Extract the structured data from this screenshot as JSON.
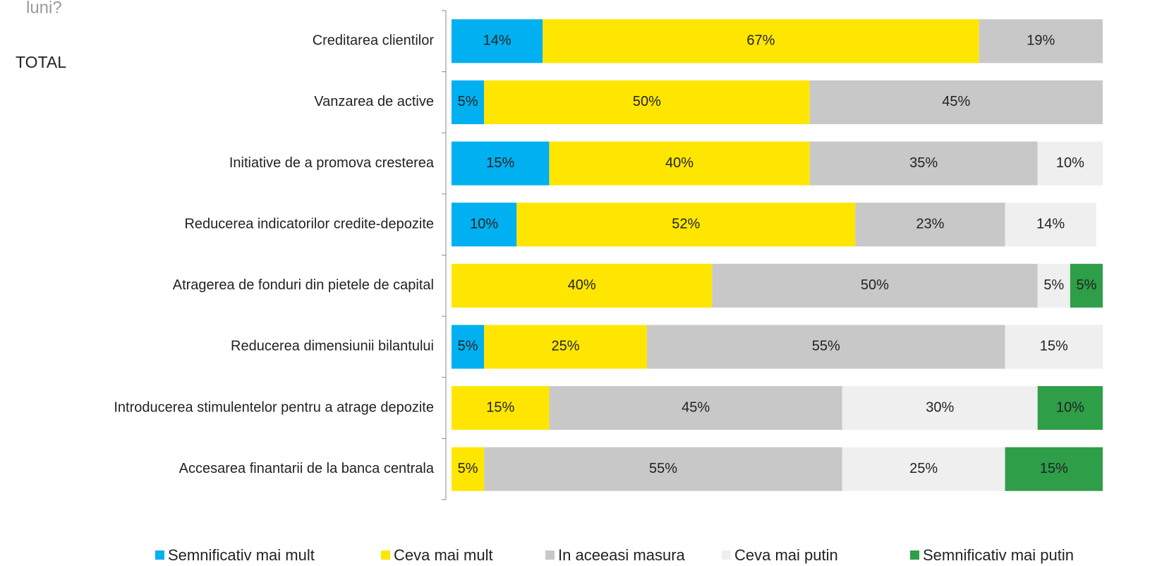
{
  "chart_data": {
    "type": "stacked_bar_horizontal",
    "title": "luni?",
    "subtitle": "TOTAL",
    "categories": [
      "Creditarea clientilor",
      "Vanzarea de active",
      "Initiative de a promova cresterea",
      "Reducerea indicatorilor credite-depozite",
      "Atragerea de fonduri din pietele de capital",
      "Reducerea dimensiunii bilantului",
      "Introducerea stimulentelor pentru a atrage depozite",
      "Accesarea finantarii de la banca centrala"
    ],
    "xlim": [
      0,
      100
    ],
    "legend": "bottom",
    "series": [
      {
        "name": "Semnificativ mai mult",
        "color": "#00b0f0",
        "values": [
          14,
          5,
          15,
          10,
          null,
          5,
          null,
          null
        ],
        "value_labels": [
          "14%",
          "5%",
          "15%",
          "10%",
          null,
          "5%",
          null,
          null
        ]
      },
      {
        "name": "Ceva mai mult",
        "color": "#ffe600",
        "values": [
          67,
          50,
          40,
          52,
          40,
          25,
          15,
          5
        ],
        "value_labels": [
          "67%",
          "50%",
          "40%",
          "52%",
          "40%",
          "25%",
          "15%",
          "5%"
        ]
      },
      {
        "name": "In aceeasi masura",
        "color": "#c8c8c8",
        "values": [
          19,
          45,
          35,
          23,
          50,
          55,
          45,
          55
        ],
        "value_labels": [
          "19%",
          "45%",
          "35%",
          "23%",
          "50%",
          "55%",
          "45%",
          "55%"
        ]
      },
      {
        "name": "Ceva mai putin",
        "color": "#efefef",
        "values": [
          null,
          null,
          10,
          14,
          5,
          15,
          30,
          25
        ],
        "value_labels": [
          null,
          null,
          "10%",
          "14%",
          "5%",
          "15%",
          "30%",
          "25%"
        ]
      },
      {
        "name": "Semnificativ mai putin",
        "color": "#2e9e48",
        "values": [
          null,
          null,
          null,
          null,
          5,
          null,
          10,
          15
        ],
        "value_labels": [
          null,
          null,
          null,
          null,
          "5%",
          null,
          "10%",
          "15%"
        ]
      }
    ]
  }
}
